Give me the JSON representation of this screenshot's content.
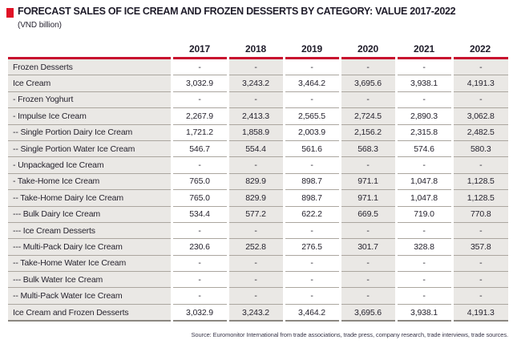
{
  "header": {
    "title": "FORECAST SALES OF ICE CREAM AND FROZEN DESSERTS BY CATEGORY: VALUE 2017-2022",
    "units": "(VND billion)"
  },
  "table": {
    "years": [
      "2017",
      "2018",
      "2019",
      "2020",
      "2021",
      "2022"
    ],
    "rows": [
      {
        "label": "Frozen Desserts",
        "values": [
          "-",
          "-",
          "-",
          "-",
          "-",
          "-"
        ]
      },
      {
        "label": "Ice Cream",
        "values": [
          "3,032.9",
          "3,243.2",
          "3,464.2",
          "3,695.6",
          "3,938.1",
          "4,191.3"
        ]
      },
      {
        "label": "- Frozen Yoghurt",
        "values": [
          "-",
          "-",
          "-",
          "-",
          "-",
          "-"
        ]
      },
      {
        "label": "- Impulse Ice Cream",
        "values": [
          "2,267.9",
          "2,413.3",
          "2,565.5",
          "2,724.5",
          "2,890.3",
          "3,062.8"
        ]
      },
      {
        "label": "-- Single Portion Dairy Ice Cream",
        "values": [
          "1,721.2",
          "1,858.9",
          "2,003.9",
          "2,156.2",
          "2,315.8",
          "2,482.5"
        ]
      },
      {
        "label": "-- Single Portion Water Ice Cream",
        "values": [
          "546.7",
          "554.4",
          "561.6",
          "568.3",
          "574.6",
          "580.3"
        ]
      },
      {
        "label": "- Unpackaged Ice Cream",
        "values": [
          "-",
          "-",
          "-",
          "-",
          "-",
          "-"
        ]
      },
      {
        "label": "- Take-Home Ice Cream",
        "values": [
          "765.0",
          "829.9",
          "898.7",
          "971.1",
          "1,047.8",
          "1,128.5"
        ]
      },
      {
        "label": "-- Take-Home Dairy Ice Cream",
        "values": [
          "765.0",
          "829.9",
          "898.7",
          "971.1",
          "1,047.8",
          "1,128.5"
        ]
      },
      {
        "label": "--- Bulk Dairy Ice Cream",
        "values": [
          "534.4",
          "577.2",
          "622.2",
          "669.5",
          "719.0",
          "770.8"
        ]
      },
      {
        "label": "--- Ice Cream Desserts",
        "values": [
          "-",
          "-",
          "-",
          "-",
          "-",
          "-"
        ]
      },
      {
        "label": "--- Multi-Pack Dairy Ice Cream",
        "values": [
          "230.6",
          "252.8",
          "276.5",
          "301.7",
          "328.8",
          "357.8"
        ]
      },
      {
        "label": "-- Take-Home Water Ice Cream",
        "values": [
          "-",
          "-",
          "-",
          "-",
          "-",
          "-"
        ]
      },
      {
        "label": "--- Bulk Water Ice Cream",
        "values": [
          "-",
          "-",
          "-",
          "-",
          "-",
          "-"
        ]
      },
      {
        "label": "-- Multi-Pack Water Ice Cream",
        "values": [
          "-",
          "-",
          "-",
          "-",
          "-",
          "-"
        ]
      },
      {
        "label": "Ice Cream and Frozen Desserts",
        "values": [
          "3,032.9",
          "3,243.2",
          "3,464.2",
          "3,695.6",
          "3,938.1",
          "4,191.3"
        ]
      }
    ]
  },
  "source": "Source: Euromonitor International from trade associations, trade press, company research, trade interviews, trade sources.",
  "colors": {
    "red_bullet": "#e01226",
    "red_line": "#c8102e",
    "cell_gray": "#eae8e5"
  }
}
